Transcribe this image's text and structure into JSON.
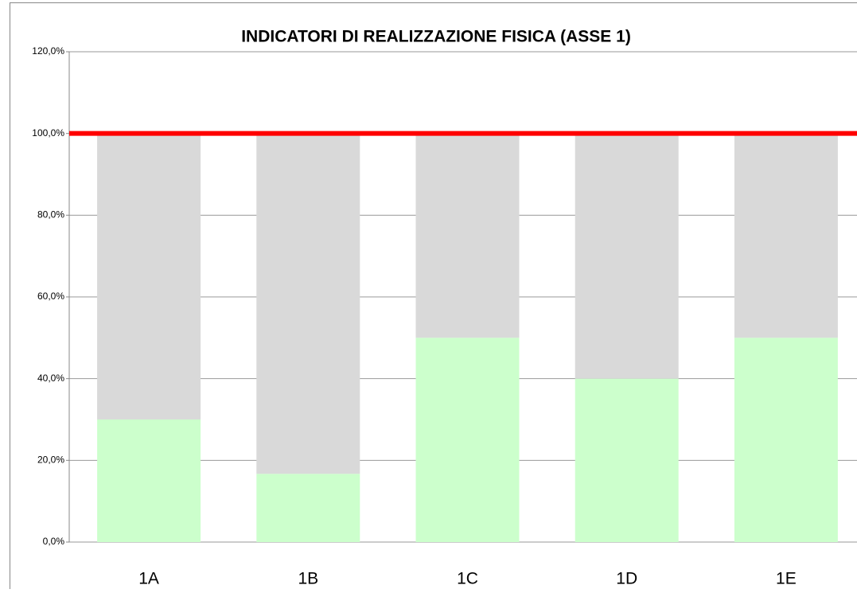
{
  "chart_data": {
    "type": "stacked_bar",
    "title": "INDICATORI DI  REALIZZAZIONE FISICA  (ASSE 1)",
    "categories": [
      "1A",
      "1B",
      "1C",
      "1D",
      "1E"
    ],
    "series": [
      {
        "color": "#ccffcc",
        "values": [
          30,
          16.7,
          50,
          40,
          50
        ]
      },
      {
        "color": "#d9d9d9",
        "values": [
          70,
          83.3,
          50,
          60,
          50
        ]
      }
    ],
    "ylim": [
      0,
      120
    ],
    "yticks": [
      {
        "value": 0,
        "label": "0,0%"
      },
      {
        "value": 20,
        "label": "20,0%"
      },
      {
        "value": 40,
        "label": "40,0%"
      },
      {
        "value": 60,
        "label": "60,0%"
      },
      {
        "value": 80,
        "label": "80,0%"
      },
      {
        "value": 100,
        "label": "100,0%"
      },
      {
        "value": 120,
        "label": "120,0%"
      }
    ],
    "grid": true,
    "reference_line": {
      "value": 100,
      "color": "#ff0000"
    }
  }
}
